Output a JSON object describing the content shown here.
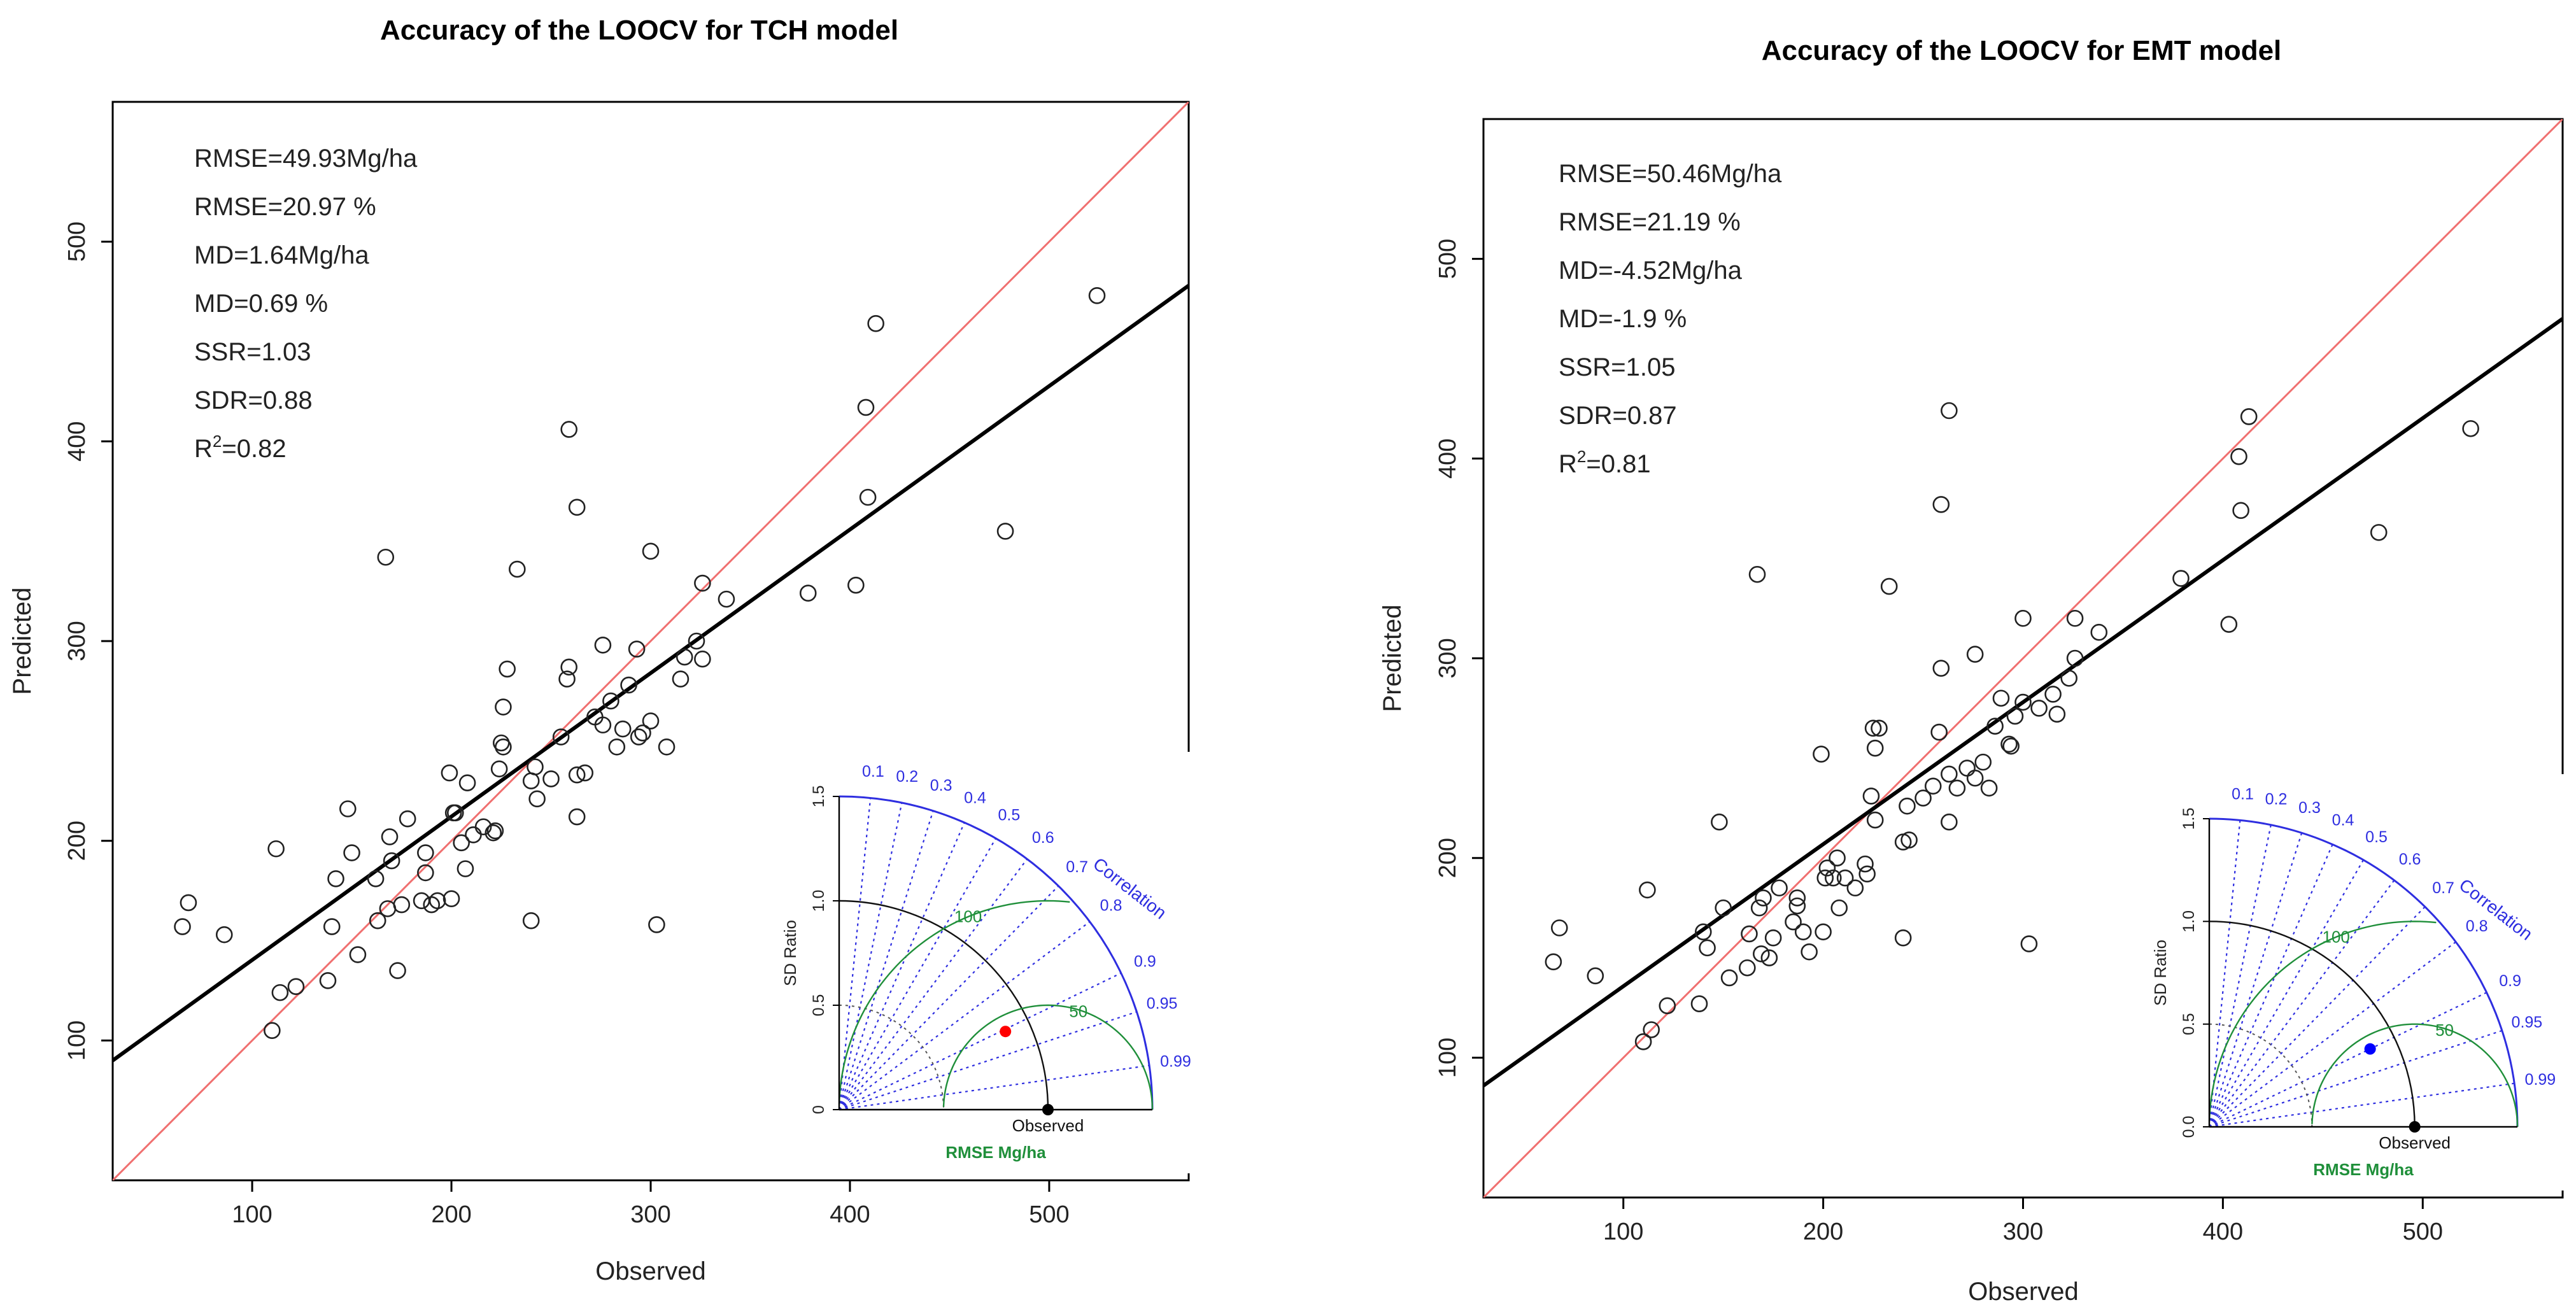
{
  "chart_data": [
    {
      "type": "scatter",
      "title": "Accuracy of the LOOCV for TCH model",
      "xlabel": "Observed",
      "ylabel": "Predicted",
      "xlim": [
        30,
        570
      ],
      "ylim": [
        30,
        570
      ],
      "xticks": [
        100,
        200,
        300,
        400,
        500
      ],
      "yticks": [
        100,
        200,
        300,
        400,
        500
      ],
      "stats": [
        "RMSE=49.93Mg/ha",
        "RMSE=20.97 %",
        "MD=1.64Mg/ha",
        "MD=0.69 %",
        "SSR=1.03",
        "SDR=0.88"
      ],
      "r2": {
        "label": "R",
        "sup": "2",
        "value": "=0.82"
      },
      "reference_line": {
        "label": "1:1",
        "color": "#f07070"
      },
      "fit_line": {
        "x": [
          30,
          570
        ],
        "y": [
          90,
          478
        ],
        "color": "#000000"
      },
      "points": [
        [
          65,
          157
        ],
        [
          68,
          169
        ],
        [
          86,
          153
        ],
        [
          110,
          105
        ],
        [
          112,
          196
        ],
        [
          114,
          124
        ],
        [
          122,
          127
        ],
        [
          138,
          130
        ],
        [
          140,
          157
        ],
        [
          142,
          181
        ],
        [
          148,
          216
        ],
        [
          150,
          194
        ],
        [
          153,
          143
        ],
        [
          162,
          181
        ],
        [
          163,
          160
        ],
        [
          167,
          342
        ],
        [
          168,
          166
        ],
        [
          169,
          202
        ],
        [
          170,
          190
        ],
        [
          173,
          135
        ],
        [
          175,
          168
        ],
        [
          178,
          211
        ],
        [
          185,
          170
        ],
        [
          187,
          194
        ],
        [
          187,
          184
        ],
        [
          190,
          168
        ],
        [
          193,
          170
        ],
        [
          199,
          234
        ],
        [
          200,
          171
        ],
        [
          201,
          214
        ],
        [
          202,
          214
        ],
        [
          205,
          199
        ],
        [
          207,
          186
        ],
        [
          208,
          229
        ],
        [
          211,
          203
        ],
        [
          216,
          207
        ],
        [
          221,
          204
        ],
        [
          222,
          205
        ],
        [
          224,
          236
        ],
        [
          225,
          249
        ],
        [
          226,
          267
        ],
        [
          226,
          247
        ],
        [
          228,
          286
        ],
        [
          233,
          336
        ],
        [
          240,
          230
        ],
        [
          240,
          160
        ],
        [
          242,
          237
        ],
        [
          243,
          221
        ],
        [
          250,
          231
        ],
        [
          255,
          252
        ],
        [
          258,
          281
        ],
        [
          259,
          406
        ],
        [
          259,
          287
        ],
        [
          263,
          233
        ],
        [
          263,
          367
        ],
        [
          263,
          212
        ],
        [
          267,
          234
        ],
        [
          272,
          262
        ],
        [
          276,
          258
        ],
        [
          276,
          298
        ],
        [
          280,
          270
        ],
        [
          283,
          247
        ],
        [
          286,
          256
        ],
        [
          289,
          278
        ],
        [
          293,
          296
        ],
        [
          294,
          252
        ],
        [
          296,
          254
        ],
        [
          300,
          260
        ],
        [
          300,
          345
        ],
        [
          303,
          158
        ],
        [
          308,
          247
        ],
        [
          315,
          281
        ],
        [
          317,
          292
        ],
        [
          323,
          300
        ],
        [
          326,
          291
        ],
        [
          326,
          329
        ],
        [
          338,
          321
        ],
        [
          379,
          324
        ],
        [
          403,
          328
        ],
        [
          408,
          417
        ],
        [
          409,
          372
        ],
        [
          413,
          459
        ],
        [
          478,
          355
        ],
        [
          524,
          473
        ]
      ],
      "taylor": {
        "ylabel": "SD Ratio",
        "arc_label": "Correlation",
        "obs_label": "Observed",
        "rmse_label": "RMSE Mg/ha",
        "sd_ticks": [
          "0",
          "0.5",
          "1.0",
          "1.5"
        ],
        "corr_ticks": [
          "0.1",
          "0.2",
          "0.3",
          "0.4",
          "0.5",
          "0.6",
          "0.7",
          "0.8",
          "0.9",
          "0.95",
          "0.99"
        ],
        "rmse_contours": [
          "50",
          "100"
        ],
        "point": {
          "sd_ratio": 0.88,
          "correlation": 0.905,
          "color": "#ff0000"
        }
      }
    },
    {
      "type": "scatter",
      "title": "Accuracy of the LOOCV for EMT model",
      "xlabel": "Observed",
      "ylabel": "Predicted",
      "xlim": [
        30,
        570
      ],
      "ylim": [
        30,
        570
      ],
      "xticks": [
        100,
        200,
        300,
        400,
        500
      ],
      "yticks": [
        100,
        200,
        300,
        400,
        500
      ],
      "stats": [
        "RMSE=50.46Mg/ha",
        "RMSE=21.19 %",
        "MD=-4.52Mg/ha",
        "MD=-1.9 %",
        "SSR=1.05",
        "SDR=0.87"
      ],
      "r2": {
        "label": "R",
        "sup": "2",
        "value": "=0.81"
      },
      "reference_line": {
        "label": "1:1",
        "color": "#f07070"
      },
      "fit_line": {
        "x": [
          30,
          570
        ],
        "y": [
          86,
          470
        ],
        "color": "#000000"
      },
      "points": [
        [
          65,
          148
        ],
        [
          68,
          165
        ],
        [
          86,
          141
        ],
        [
          110,
          108
        ],
        [
          112,
          184
        ],
        [
          114,
          114
        ],
        [
          122,
          126
        ],
        [
          138,
          127
        ],
        [
          140,
          163
        ],
        [
          142,
          155
        ],
        [
          148,
          218
        ],
        [
          150,
          175
        ],
        [
          153,
          140
        ],
        [
          162,
          145
        ],
        [
          163,
          162
        ],
        [
          167,
          342
        ],
        [
          168,
          175
        ],
        [
          169,
          152
        ],
        [
          170,
          180
        ],
        [
          173,
          150
        ],
        [
          175,
          160
        ],
        [
          178,
          185
        ],
        [
          185,
          168
        ],
        [
          187,
          176
        ],
        [
          187,
          180
        ],
        [
          190,
          163
        ],
        [
          193,
          153
        ],
        [
          199,
          252
        ],
        [
          200,
          163
        ],
        [
          201,
          190
        ],
        [
          202,
          195
        ],
        [
          205,
          190
        ],
        [
          207,
          200
        ],
        [
          208,
          175
        ],
        [
          211,
          190
        ],
        [
          216,
          185
        ],
        [
          221,
          197
        ],
        [
          222,
          192
        ],
        [
          224,
          231
        ],
        [
          225,
          265
        ],
        [
          226,
          255
        ],
        [
          226,
          219
        ],
        [
          228,
          265
        ],
        [
          233,
          336
        ],
        [
          240,
          208
        ],
        [
          240,
          160
        ],
        [
          242,
          226
        ],
        [
          243,
          209
        ],
        [
          250,
          230
        ],
        [
          255,
          236
        ],
        [
          258,
          263
        ],
        [
          259,
          377
        ],
        [
          259,
          295
        ],
        [
          263,
          424
        ],
        [
          263,
          242
        ],
        [
          263,
          218
        ],
        [
          267,
          235
        ],
        [
          272,
          245
        ],
        [
          276,
          240
        ],
        [
          276,
          302
        ],
        [
          280,
          248
        ],
        [
          283,
          235
        ],
        [
          286,
          266
        ],
        [
          289,
          280
        ],
        [
          293,
          257
        ],
        [
          294,
          256
        ],
        [
          296,
          271
        ],
        [
          300,
          278
        ],
        [
          300,
          320
        ],
        [
          303,
          157
        ],
        [
          308,
          275
        ],
        [
          315,
          282
        ],
        [
          317,
          272
        ],
        [
          323,
          290
        ],
        [
          326,
          320
        ],
        [
          326,
          300
        ],
        [
          338,
          313
        ],
        [
          379,
          340
        ],
        [
          403,
          317
        ],
        [
          408,
          401
        ],
        [
          409,
          374
        ],
        [
          413,
          421
        ],
        [
          478,
          363
        ],
        [
          524,
          415
        ]
      ],
      "taylor": {
        "ylabel": "SD Ratio",
        "arc_label": "Correlation",
        "obs_label": "Observed",
        "rmse_label": "RMSE Mg/ha",
        "sd_ticks": [
          "0.0",
          "0.5",
          "1.0",
          "1.5"
        ],
        "corr_ticks": [
          "0.1",
          "0.2",
          "0.3",
          "0.4",
          "0.5",
          "0.6",
          "0.7",
          "0.8",
          "0.9",
          "0.95",
          "0.99"
        ],
        "rmse_contours": [
          "50",
          "100"
        ],
        "point": {
          "sd_ratio": 0.87,
          "correlation": 0.9,
          "color": "#0000ff"
        }
      }
    }
  ]
}
